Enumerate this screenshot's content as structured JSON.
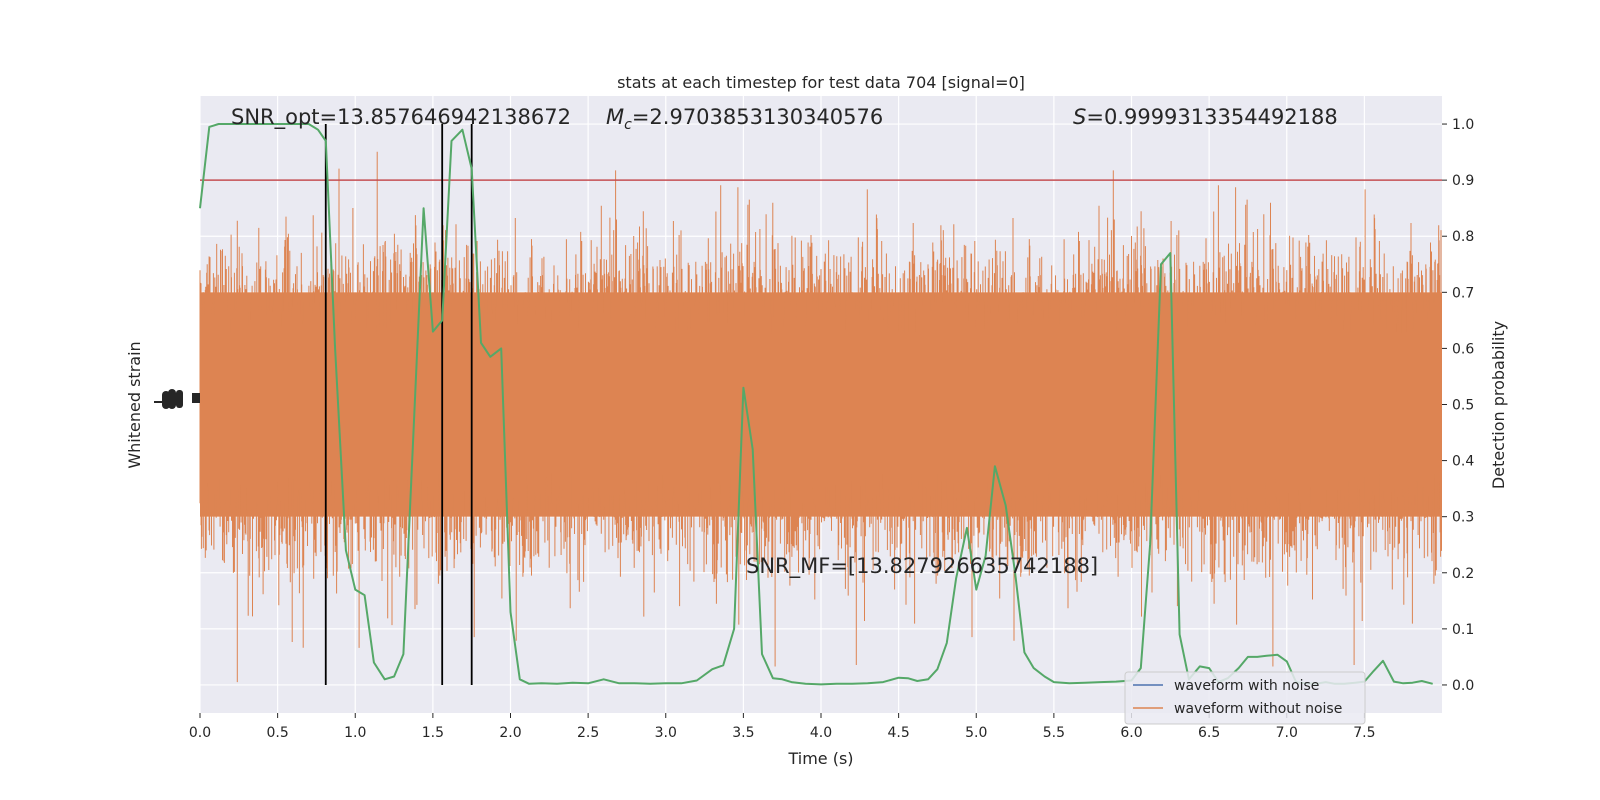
{
  "chart_data": {
    "type": "line",
    "title": "stats at each timestep for test data 704 [signal=0]",
    "xlabel": "Time (s)",
    "ylabel_left": "Whitened strain",
    "ylabel_right": "Detection probability",
    "xlim": [
      0,
      8
    ],
    "ylim_right": [
      -0.05,
      1.05
    ],
    "x_ticks": [
      0.0,
      0.5,
      1.0,
      1.5,
      2.0,
      2.5,
      3.0,
      3.5,
      4.0,
      4.5,
      5.0,
      5.5,
      6.0,
      6.5,
      7.0,
      7.5
    ],
    "x_tick_labels": [
      "0.0",
      "0.5",
      "1.0",
      "1.5",
      "2.0",
      "2.5",
      "3.0",
      "3.5",
      "4.0",
      "4.5",
      "5.0",
      "5.5",
      "6.0",
      "6.5",
      "7.0",
      "7.5"
    ],
    "y_ticks_right": [
      0.0,
      0.1,
      0.2,
      0.3,
      0.4,
      0.5,
      0.6,
      0.7,
      0.8,
      0.9,
      1.0
    ],
    "y_tick_labels_right": [
      "0.0",
      "0.1",
      "0.2",
      "0.3",
      "0.4",
      "0.5",
      "0.6",
      "0.7",
      "0.8",
      "0.9",
      "1.0"
    ],
    "grid": true,
    "legend": {
      "placement": "lower-right",
      "entries": [
        {
          "label": "waveform with noise",
          "color": "#4c72b0"
        },
        {
          "label": "waveform without noise",
          "color": "#dd8452"
        }
      ]
    },
    "annotations": {
      "snr_opt": "SNR_opt=13.857646942138672",
      "mc_symbol": "M",
      "mc_sub": "c",
      "mc_value": "=2.9703853130340576",
      "s_symbol": "S",
      "s_value": "=0.9999313354492188",
      "snr_mf": "SNR_MF=[13.827926635742188]"
    },
    "threshold": {
      "y": 0.9,
      "color": "#c44e52"
    },
    "vertical_lines": {
      "x": [
        0.81,
        1.56,
        1.75
      ],
      "y_from": 0.0,
      "y_to": 1.0,
      "color": "#000000"
    },
    "noise_band": {
      "color": "#dd8452",
      "core_range": [
        0.3,
        0.7
      ],
      "spike_range": [
        0.0,
        1.0
      ],
      "description_note": ""
    },
    "detection_probability": {
      "color": "#55a868",
      "x": [
        0.0,
        0.06,
        0.12,
        0.2,
        0.3,
        0.4,
        0.5,
        0.6,
        0.7,
        0.76,
        0.81,
        0.87,
        0.94,
        1.0,
        1.06,
        1.12,
        1.19,
        1.25,
        1.31,
        1.37,
        1.44,
        1.5,
        1.56,
        1.62,
        1.69,
        1.75,
        1.81,
        1.87,
        1.94,
        2.0,
        2.06,
        2.12,
        2.2,
        2.3,
        2.4,
        2.5,
        2.6,
        2.7,
        2.8,
        2.9,
        3.0,
        3.1,
        3.2,
        3.3,
        3.37,
        3.44,
        3.5,
        3.56,
        3.62,
        3.69,
        3.75,
        3.81,
        3.9,
        4.0,
        4.1,
        4.2,
        4.3,
        4.4,
        4.5,
        4.56,
        4.62,
        4.69,
        4.75,
        4.81,
        4.87,
        4.94,
        5.0,
        5.06,
        5.12,
        5.19,
        5.25,
        5.31,
        5.37,
        5.44,
        5.5,
        5.6,
        5.7,
        5.8,
        5.9,
        6.0,
        6.06,
        6.12,
        6.19,
        6.25,
        6.31,
        6.37,
        6.44,
        6.5,
        6.56,
        6.62,
        6.69,
        6.75,
        6.81,
        6.87,
        6.94,
        7.0,
        7.06,
        7.12,
        7.19,
        7.25,
        7.31,
        7.37,
        7.44,
        7.5,
        7.56,
        7.62,
        7.69,
        7.75,
        7.81,
        7.87,
        7.94
      ],
      "y": [
        0.85,
        0.995,
        1.0,
        1.0,
        1.0,
        1.0,
        1.0,
        1.0,
        1.0,
        0.99,
        0.97,
        0.6,
        0.24,
        0.17,
        0.16,
        0.04,
        0.01,
        0.015,
        0.055,
        0.42,
        0.85,
        0.63,
        0.65,
        0.97,
        0.99,
        0.92,
        0.61,
        0.585,
        0.6,
        0.13,
        0.01,
        0.002,
        0.003,
        0.002,
        0.004,
        0.003,
        0.01,
        0.003,
        0.003,
        0.002,
        0.003,
        0.003,
        0.008,
        0.028,
        0.035,
        0.1,
        0.53,
        0.42,
        0.055,
        0.012,
        0.01,
        0.005,
        0.002,
        0.001,
        0.002,
        0.002,
        0.003,
        0.005,
        0.013,
        0.012,
        0.007,
        0.01,
        0.028,
        0.075,
        0.19,
        0.28,
        0.17,
        0.23,
        0.39,
        0.32,
        0.2,
        0.058,
        0.03,
        0.015,
        0.005,
        0.003,
        0.004,
        0.005,
        0.006,
        0.008,
        0.03,
        0.25,
        0.75,
        0.77,
        0.09,
        0.01,
        0.033,
        0.03,
        0.005,
        0.012,
        0.03,
        0.05,
        0.05,
        0.052,
        0.054,
        0.042,
        0.005,
        0.003,
        0.002,
        0.005,
        0.002,
        0.002,
        0.004,
        0.006,
        0.025,
        0.043,
        0.006,
        0.003,
        0.004,
        0.007,
        0.002
      ]
    }
  }
}
